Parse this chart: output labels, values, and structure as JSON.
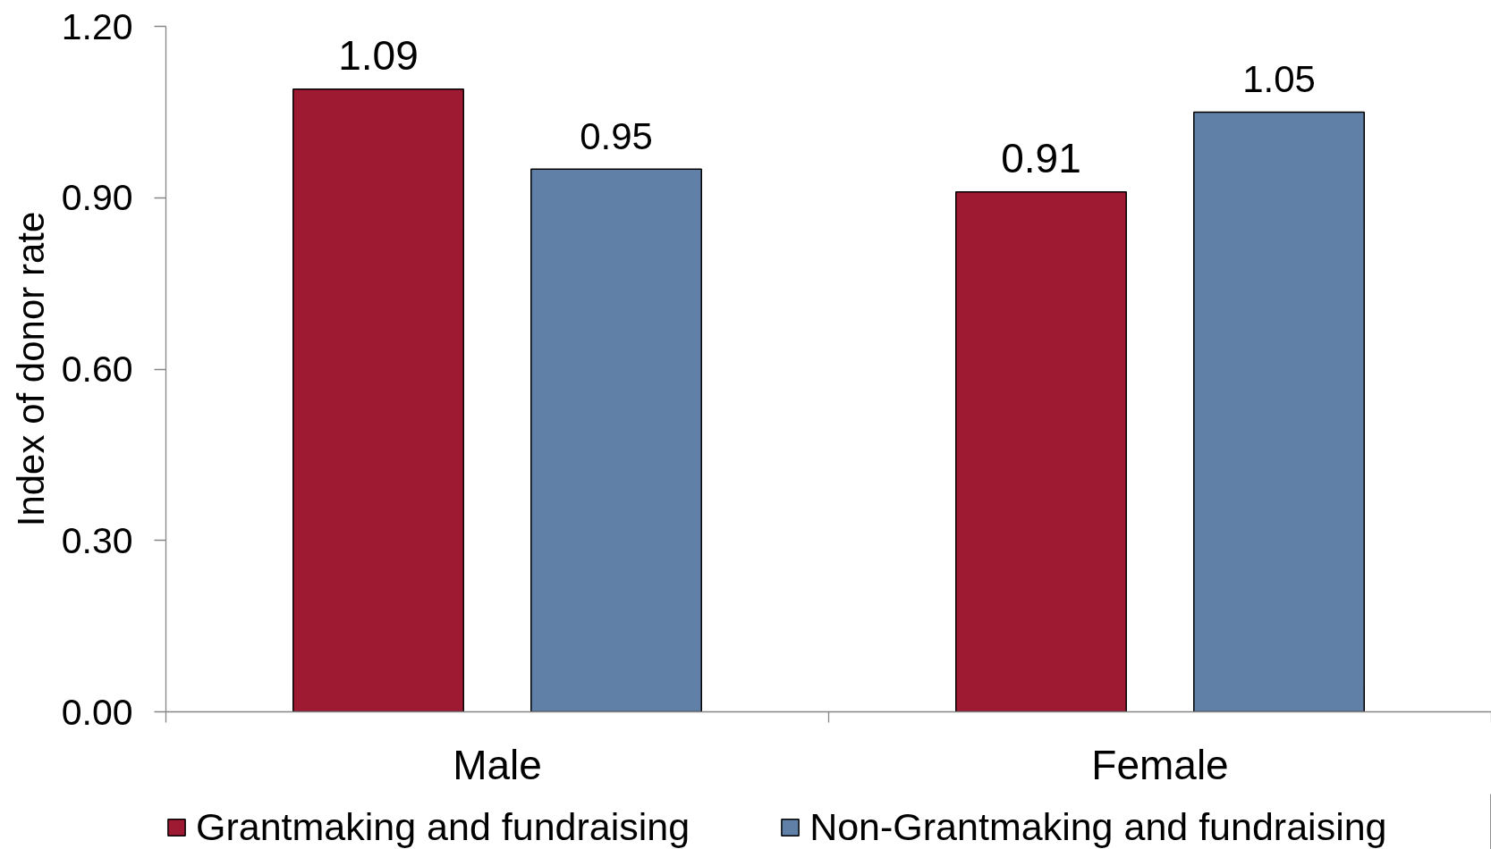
{
  "chart_data": {
    "type": "bar",
    "ylabel": "Index of donor rate",
    "categories": [
      "Male",
      "Female"
    ],
    "series": [
      {
        "name": "Grantmaking and fundraising",
        "color": "#9e1a33",
        "values": [
          1.09,
          0.91
        ]
      },
      {
        "name": "Non-Grantmaking and fundraising",
        "color": "#6080a8",
        "values": [
          0.95,
          1.05
        ]
      }
    ],
    "ylim": [
      0,
      1.2
    ],
    "yticks": [
      {
        "value": 0,
        "label": "0.00"
      },
      {
        "value": 0.3,
        "label": "0.30"
      },
      {
        "value": 0.6,
        "label": "0.60"
      },
      {
        "value": 0.9,
        "label": "0.90"
      },
      {
        "value": 1.2,
        "label": "1.20"
      }
    ],
    "data_labels": true,
    "legend": "bottom"
  }
}
